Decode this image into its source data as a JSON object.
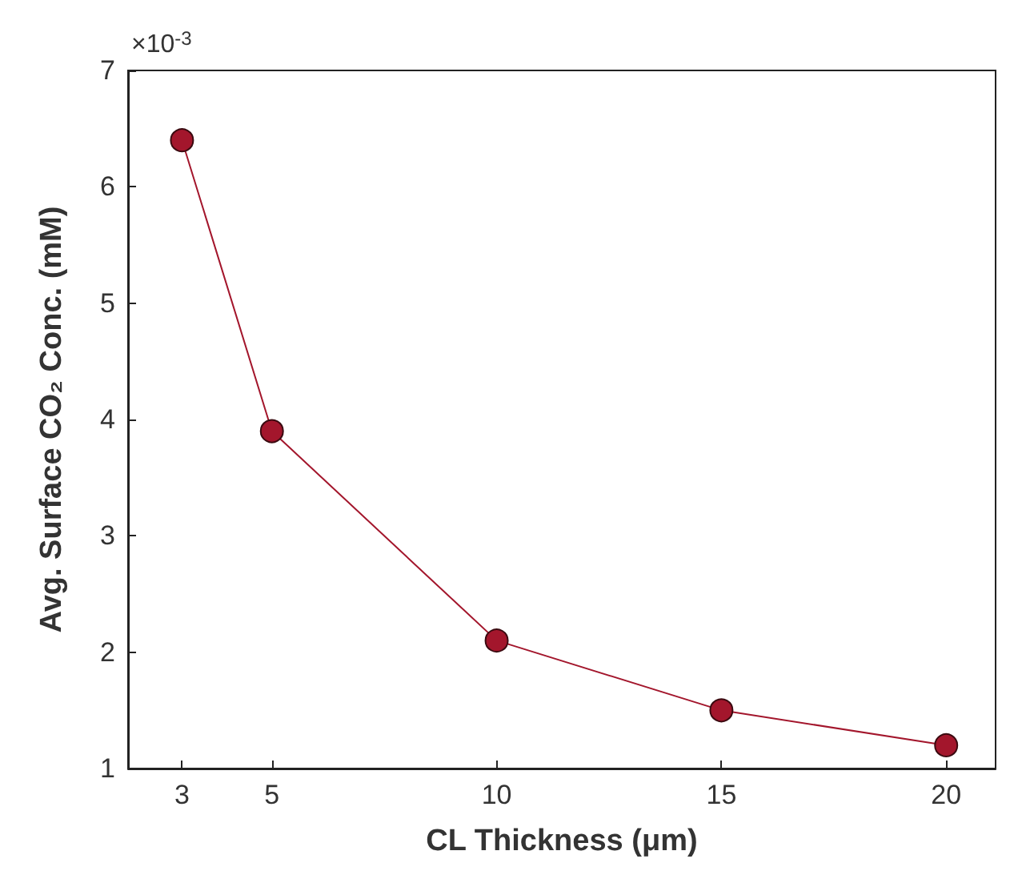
{
  "chart_data": {
    "type": "line",
    "xlabel": "CL Thickness (μm)",
    "ylabel": "Avg. Surface CO₂ Conc. (mM)",
    "annotations": [
      "×10$^{-3}$"
    ],
    "x": [
      3,
      5,
      10,
      15,
      20
    ],
    "series": [
      {
        "color": "#a3162c",
        "values": [
          6.4,
          3.9,
          2.1,
          1.5,
          1.2
        ]
      }
    ],
    "xlim": [
      1.8,
      21.1
    ],
    "ylim": [
      1,
      7
    ],
    "xticks": [
      3,
      5,
      10,
      15,
      20
    ],
    "yticks": [
      1,
      2,
      3,
      4,
      5,
      6,
      7
    ],
    "grid": false,
    "marker": "circle",
    "line_style": "solid"
  }
}
